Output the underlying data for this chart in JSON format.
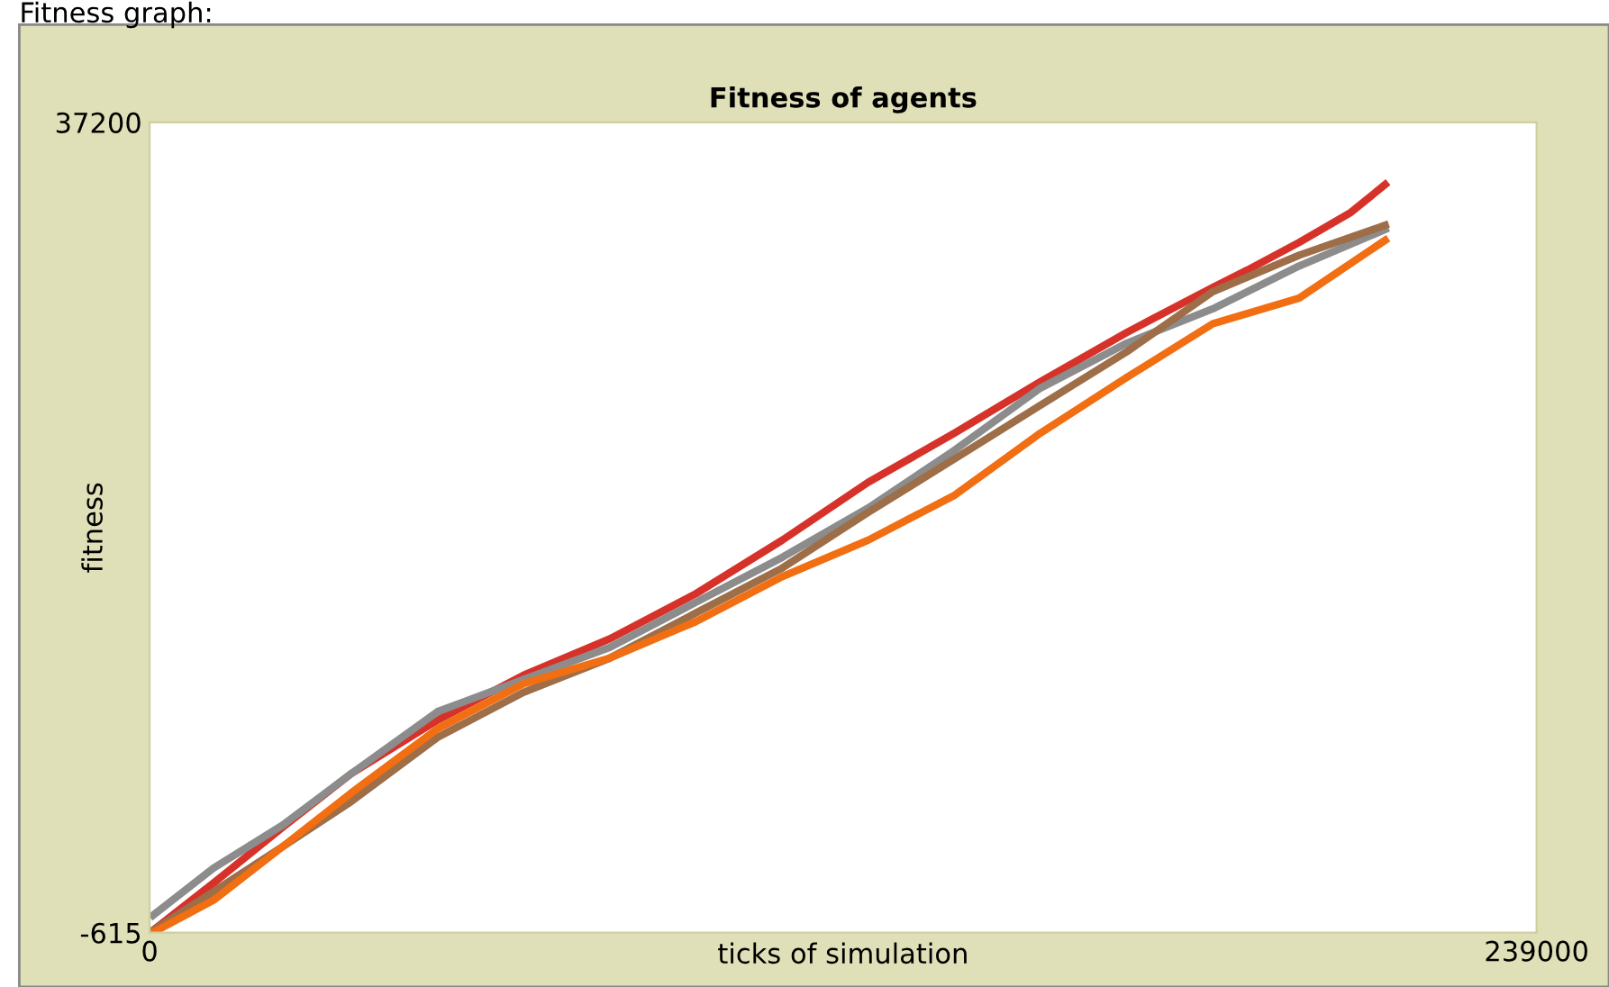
{
  "chart_data": {
    "type": "line",
    "title": "Fitness of agents",
    "xlabel": "ticks of simulation",
    "ylabel": "fitness",
    "annotations": [
      "Fitness graph:"
    ],
    "xlim": [
      0,
      239000
    ],
    "ylim": [
      -615,
      37200
    ],
    "xticks": [
      0,
      239000
    ],
    "yticks": [
      -615,
      37200
    ],
    "grid": false,
    "line_style": "solid",
    "series": [
      {
        "color": "#d73229",
        "x": [
          600,
          11000,
          22900,
          34700,
          49600,
          64400,
          79300,
          94100,
          109000,
          123800,
          138700,
          153500,
          168400,
          183200,
          189100,
          198100,
          207000,
          212900
        ],
        "values": [
          -500,
          1700,
          4300,
          6800,
          9300,
          11400,
          13100,
          15200,
          17700,
          20400,
          22700,
          25100,
          27400,
          29500,
          30300,
          31600,
          33000,
          34300
        ]
      },
      {
        "color": "#8c8c8c",
        "x": [
          600,
          11000,
          22900,
          34700,
          49600,
          64400,
          79300,
          94100,
          109000,
          123800,
          138700,
          153500,
          168400,
          183200,
          198100,
          212900
        ],
        "values": [
          200,
          2400,
          4400,
          6800,
          9700,
          11200,
          12700,
          14800,
          16900,
          19200,
          21900,
          24800,
          26900,
          28500,
          30500,
          32200
        ]
      },
      {
        "color": "#9d6e48",
        "x": [
          600,
          11000,
          22900,
          34700,
          49600,
          64400,
          79300,
          94100,
          109000,
          123800,
          138700,
          153500,
          168400,
          183200,
          198100,
          212900
        ],
        "values": [
          -500,
          1300,
          3400,
          5500,
          8500,
          10600,
          12200,
          14300,
          16400,
          19000,
          21500,
          24000,
          26500,
          29300,
          31000,
          32400
        ]
      },
      {
        "color": "#f16e12",
        "x": [
          600,
          11000,
          22900,
          34700,
          49600,
          64400,
          79300,
          94100,
          109000,
          123800,
          138700,
          153500,
          168400,
          183200,
          198100,
          212900
        ],
        "values": [
          -600,
          900,
          3400,
          5900,
          8900,
          11000,
          12200,
          13900,
          16000,
          17700,
          19800,
          22700,
          25300,
          27800,
          29000,
          31700
        ]
      }
    ]
  }
}
